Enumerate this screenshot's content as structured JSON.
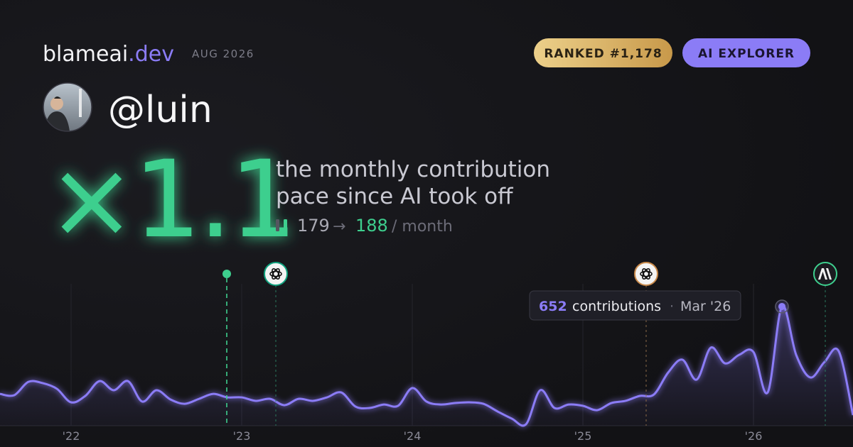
{
  "header": {
    "brand": "blameai",
    "tld": ".dev",
    "date": "AUG 2026",
    "rank": "RANKED #1,178",
    "badge": "AI EXPLORER"
  },
  "profile": {
    "handle": "@luin"
  },
  "stats": {
    "multiplier": "×1.1",
    "description": [
      "the monthly contribution",
      "pace since AI took off"
    ],
    "before": 179,
    "arrow": "→",
    "after": 188,
    "unit": "/ month"
  },
  "chart_data": {
    "type": "area",
    "categories": [
      null,
      null,
      null,
      null,
      null,
      "'22",
      null,
      null,
      null,
      null,
      null,
      null,
      null,
      null,
      null,
      null,
      null,
      "'23",
      null,
      null,
      null,
      null,
      null,
      null,
      null,
      null,
      null,
      null,
      null,
      "'24",
      null,
      null,
      null,
      null,
      null,
      null,
      null,
      null,
      null,
      null,
      null,
      "'25",
      null,
      null,
      null,
      null,
      null,
      null,
      null,
      null,
      null,
      null,
      null,
      "'26",
      null,
      null,
      null,
      null,
      null,
      null,
      null
    ],
    "values": [
      174,
      167,
      240,
      233,
      202,
      128,
      163,
      244,
      194,
      244,
      132,
      194,
      143,
      120,
      147,
      174,
      155,
      155,
      136,
      147,
      112,
      147,
      136,
      155,
      182,
      105,
      97,
      116,
      109,
      206,
      132,
      116,
      124,
      128,
      120,
      78,
      39,
      8,
      194,
      97,
      116,
      109,
      85,
      124,
      136,
      163,
      171,
      291,
      361,
      252,
      427,
      341,
      388,
      403,
      182,
      652,
      388,
      264,
      349,
      407,
      58
    ],
    "color": "#8b7cf6",
    "ylim": [
      0,
      700
    ],
    "grid": true,
    "highlight": {
      "value": 652,
      "label": "contributions",
      "separator": "·",
      "date": "Mar '26"
    }
  }
}
